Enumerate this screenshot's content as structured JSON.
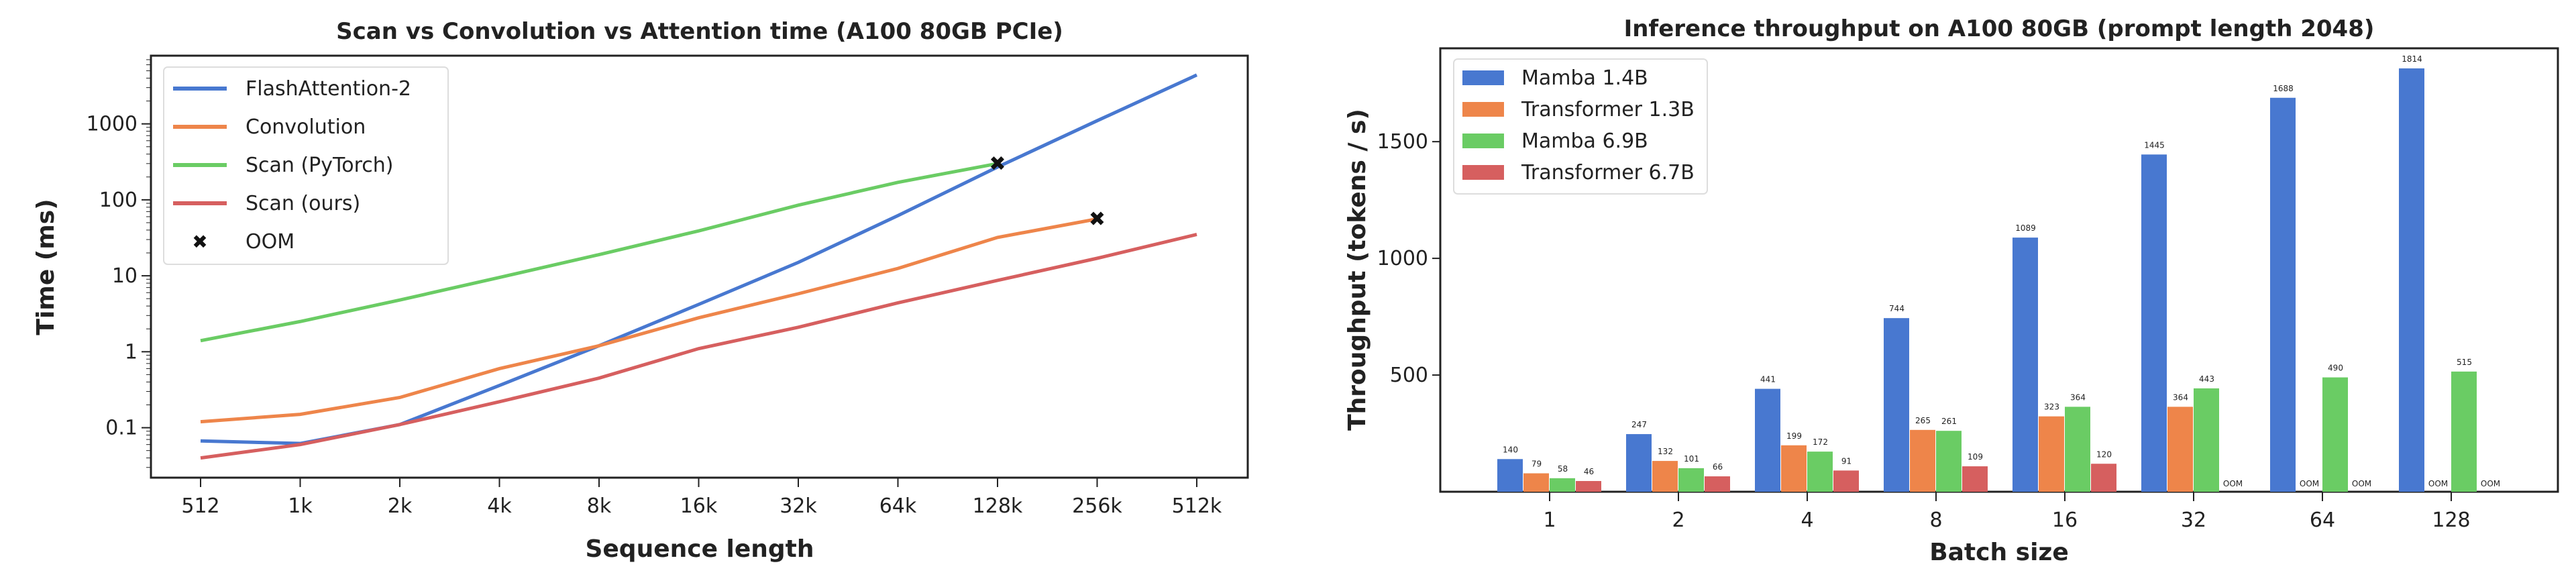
{
  "chart_data": [
    {
      "type": "line",
      "title": "Scan vs Convolution vs Attention time (A100 80GB PCIe)",
      "xlabel": "Sequence length",
      "ylabel": "Time (ms)",
      "yscale": "log",
      "ylim": [
        0.022,
        7900
      ],
      "yticks": [
        "0.1",
        "1",
        "10",
        "100",
        "1000"
      ],
      "ytick_values": [
        0.1,
        1,
        10,
        100,
        1000
      ],
      "categories": [
        "512",
        "1k",
        "2k",
        "4k",
        "8k",
        "16k",
        "32k",
        "64k",
        "128k",
        "256k",
        "512k"
      ],
      "legend_position": "top-left",
      "series": [
        {
          "name": "FlashAttention-2",
          "color": "#4878d0",
          "values": [
            0.067,
            0.062,
            0.11,
            0.36,
            1.2,
            4.2,
            15,
            62,
            270,
            1100,
            4400
          ]
        },
        {
          "name": "Convolution",
          "color": "#ee854a",
          "values": [
            0.12,
            0.15,
            0.25,
            0.6,
            1.2,
            2.8,
            5.8,
            12.5,
            32,
            56,
            null
          ]
        },
        {
          "name": "Scan (PyTorch)",
          "color": "#6acc64",
          "values": [
            1.4,
            2.5,
            4.8,
            9.5,
            19,
            39,
            85,
            170,
            300,
            null,
            null
          ]
        },
        {
          "name": "Scan (ours)",
          "color": "#d65f5f",
          "values": [
            0.04,
            0.06,
            0.11,
            0.22,
            0.45,
            1.1,
            2.1,
            4.4,
            8.7,
            17,
            35
          ]
        }
      ],
      "markers": {
        "name": "OOM",
        "symbol": "x",
        "points": [
          {
            "x": "128k",
            "y": 300
          },
          {
            "x": "256k",
            "y": 56
          }
        ]
      }
    },
    {
      "type": "bar",
      "title": "Inference throughput on A100 80GB (prompt length 2048)",
      "xlabel": "Batch size",
      "ylabel": "Throughput (tokens / s)",
      "ylim": [
        0,
        1900
      ],
      "yticks": [
        500,
        1000,
        1500
      ],
      "categories": [
        "1",
        "2",
        "4",
        "8",
        "16",
        "32",
        "64",
        "128"
      ],
      "legend_position": "top-left",
      "oom_label": "OOM",
      "series": [
        {
          "name": "Mamba 1.4B",
          "color": "#4878d0",
          "values": [
            140,
            247,
            441,
            744,
            1089,
            1445,
            1688,
            1814
          ]
        },
        {
          "name": "Transformer 1.3B",
          "color": "#ee854a",
          "values": [
            79,
            132,
            199,
            265,
            323,
            364,
            null,
            null
          ]
        },
        {
          "name": "Mamba 6.9B",
          "color": "#6acc64",
          "values": [
            58,
            101,
            172,
            261,
            364,
            443,
            490,
            515
          ]
        },
        {
          "name": "Transformer 6.7B",
          "color": "#d65f5f",
          "values": [
            46,
            66,
            91,
            109,
            120,
            null,
            null,
            null
          ]
        }
      ]
    }
  ]
}
